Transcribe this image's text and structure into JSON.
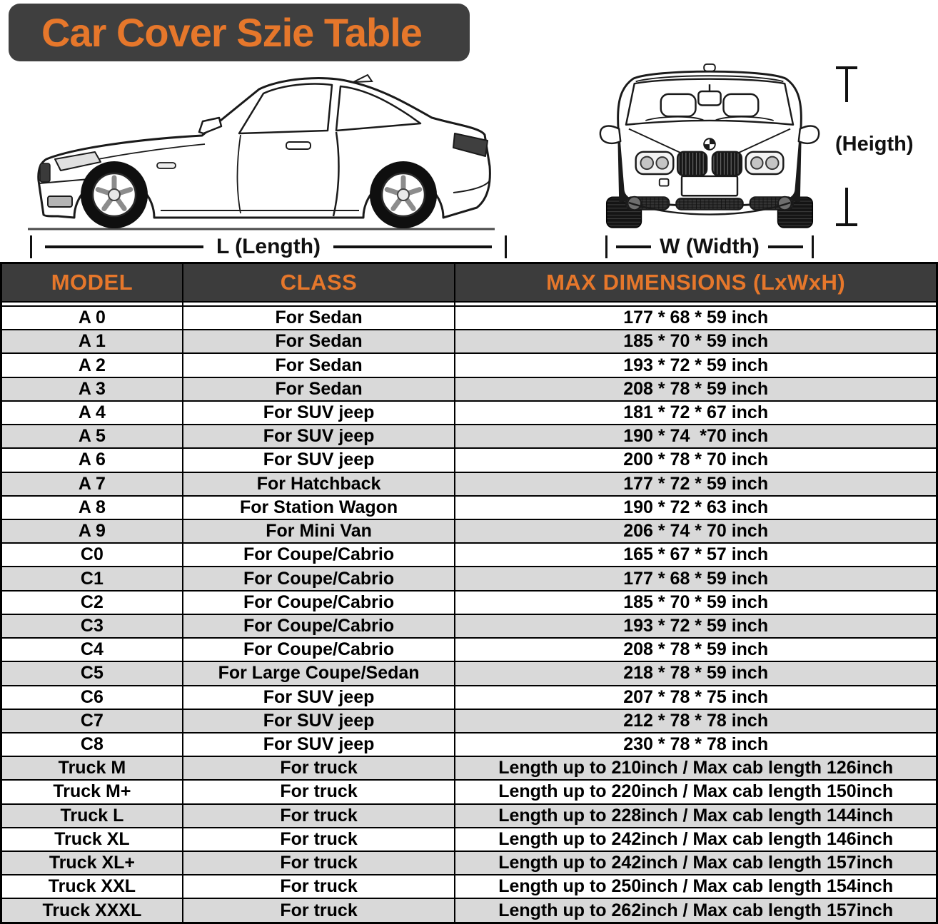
{
  "title": "Car Cover Szie Table",
  "diagram": {
    "side_car_icon": "car-side-view",
    "front_car_icon": "car-front-view",
    "length_label": "L (Length)",
    "width_label": "W (Width)",
    "height_label": "(Heigth)"
  },
  "table": {
    "headers": [
      "MODEL",
      "CLASS",
      "MAX DIMENSIONS (LxWxH)"
    ],
    "rows": [
      [
        "A 0",
        "For Sedan",
        "177 * 68 * 59 inch"
      ],
      [
        "A 1",
        "For Sedan",
        "185 * 70 * 59 inch"
      ],
      [
        "A 2",
        "For Sedan",
        "193 * 72 * 59 inch"
      ],
      [
        "A 3",
        "For Sedan",
        "208 * 78 * 59 inch"
      ],
      [
        "A 4",
        "For SUV jeep",
        "181 * 72 * 67 inch"
      ],
      [
        "A 5",
        "For SUV jeep",
        "190 * 74  *70 inch"
      ],
      [
        "A 6",
        "For SUV jeep",
        "200 * 78 * 70 inch"
      ],
      [
        "A 7",
        "For Hatchback",
        "177 * 72 * 59 inch"
      ],
      [
        "A 8",
        "For Station Wagon",
        "190 * 72 * 63 inch"
      ],
      [
        "A 9",
        "For Mini Van",
        "206 * 74 * 70 inch"
      ],
      [
        "C0",
        "For Coupe/Cabrio",
        "165 * 67 * 57 inch"
      ],
      [
        "C1",
        "For Coupe/Cabrio",
        "177 * 68 * 59 inch"
      ],
      [
        "C2",
        "For Coupe/Cabrio",
        "185 * 70 * 59 inch"
      ],
      [
        "C3",
        "For Coupe/Cabrio",
        "193 * 72 * 59 inch"
      ],
      [
        "C4",
        "For Coupe/Cabrio",
        "208 * 78 * 59 inch"
      ],
      [
        "C5",
        "For Large Coupe/Sedan",
        "218 * 78 * 59 inch"
      ],
      [
        "C6",
        "For SUV jeep",
        "207 * 78 * 75 inch"
      ],
      [
        "C7",
        "For SUV jeep",
        "212 * 78 * 78 inch"
      ],
      [
        "C8",
        "For SUV jeep",
        "230 * 78 * 78 inch"
      ],
      [
        "Truck M",
        "For truck",
        "Length up to 210inch / Max cab length 126inch"
      ],
      [
        "Truck M+",
        "For truck",
        "Length up to 220inch / Max cab length 150inch"
      ],
      [
        "Truck L",
        "For truck",
        "Length up to 228inch / Max cab length 144inch"
      ],
      [
        "Truck XL",
        "For truck",
        "Length up to 242inch / Max cab length 146inch"
      ],
      [
        "Truck XL+",
        "For truck",
        "Length up to 242inch / Max cab length 157inch"
      ],
      [
        "Truck XXL",
        "For truck",
        "Length up to 250inch / Max cab length 154inch"
      ],
      [
        "Truck XXXL",
        "For truck",
        "Length up to 262inch / Max cab length 157inch"
      ]
    ]
  },
  "colors": {
    "accent_orange": "#E6772B",
    "banner_bg": "#3F3F3F",
    "table_header_bg": "#3C3C3C",
    "row_stripe": "#D9D9D9",
    "line_black": "#111111"
  }
}
